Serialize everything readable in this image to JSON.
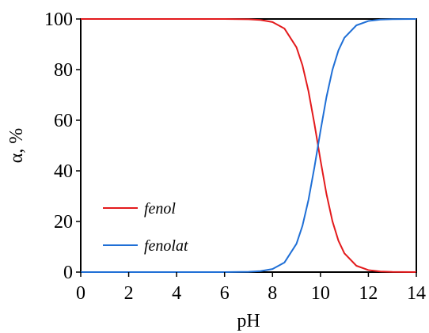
{
  "chart_data": {
    "type": "line",
    "xlabel": "pH",
    "ylabel": "α, %",
    "xlim": [
      0,
      14
    ],
    "ylim": [
      0,
      100
    ],
    "xticks": [
      "0",
      "2",
      "4",
      "6",
      "8",
      "10",
      "12",
      "14"
    ],
    "yticks": [
      "0",
      "20",
      "40",
      "60",
      "80",
      "100"
    ],
    "grid": false,
    "legend_position": "bottom-left",
    "series": [
      {
        "name": "fenol",
        "color": "#e31a1c",
        "x": [
          0,
          1,
          2,
          3,
          4,
          5,
          6,
          7,
          7.5,
          8,
          8.5,
          9,
          9.25,
          9.5,
          9.75,
          10,
          10.25,
          10.5,
          10.75,
          11,
          11.5,
          12,
          12.5,
          13,
          14
        ],
        "y": [
          100,
          100,
          100,
          100,
          100,
          100,
          99.99,
          99.9,
          99.6,
          98.8,
          96.2,
          88.8,
          81.7,
          71.5,
          58.5,
          44.3,
          30.9,
          20.1,
          12.4,
          7.4,
          2.5,
          0.8,
          0.25,
          0.08,
          0
        ]
      },
      {
        "name": "fenolat",
        "color": "#1f6fd6",
        "x": [
          0,
          1,
          2,
          3,
          4,
          5,
          6,
          7,
          7.5,
          8,
          8.5,
          9,
          9.25,
          9.5,
          9.75,
          10,
          10.25,
          10.5,
          10.75,
          11,
          11.5,
          12,
          12.5,
          13,
          14
        ],
        "y": [
          0,
          0,
          0,
          0,
          0,
          0,
          0.01,
          0.1,
          0.4,
          1.2,
          3.8,
          11.2,
          18.3,
          28.5,
          41.5,
          55.7,
          69.1,
          79.9,
          87.6,
          92.6,
          97.5,
          99.2,
          99.75,
          99.92,
          100
        ]
      }
    ]
  }
}
